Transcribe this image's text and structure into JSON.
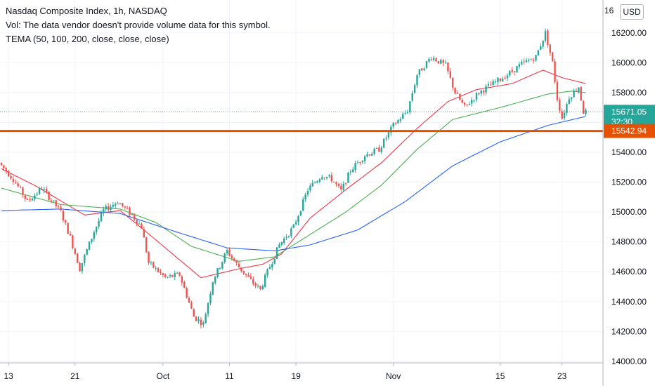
{
  "legend": {
    "title": "Nasdaq Composite Index, 1h, NASDAQ",
    "vol": "Vol: The data vendor doesn't provide volume data for this symbol.",
    "tema": "TEMA (50, 100, 200, close, close, close)"
  },
  "currency_button": "USD",
  "chart_data": {
    "type": "candlestick",
    "title": "Nasdaq Composite Index, 1h, NASDAQ",
    "y_ticks": [
      14000,
      14200,
      14400,
      14600,
      14800,
      15000,
      15200,
      15400,
      15600,
      15800,
      16000,
      16200
    ],
    "y_tick_labels": [
      "14000.00",
      "14200.00",
      "14400.00",
      "14600.00",
      "14800.00",
      "15000.00",
      "15200.00",
      "15400.00",
      "15600.00",
      "15800.00",
      "16000.00",
      "16200.00"
    ],
    "top_tick_partial": "16",
    "ylim": [
      13990,
      16420
    ],
    "x_tick_labels": [
      "13",
      "21",
      "Oct",
      "11",
      "19",
      "Nov",
      "15",
      "23"
    ],
    "grid": true,
    "price_labels": [
      {
        "label": "15671.05",
        "sublabel": "32:30",
        "color": "#26a69a"
      },
      {
        "label": "15542.94",
        "color": "#e65100"
      }
    ],
    "horizontal_line": {
      "value": 15542.94,
      "color": "#e65100"
    },
    "last_price": 15671.05,
    "colors": {
      "up": "#26a69a",
      "down": "#ef5350",
      "tema50": "#f23645",
      "tema100": "#4caf50",
      "tema200": "#2962ff"
    },
    "anchors": [
      [
        0,
        15330
      ],
      [
        6,
        15220
      ],
      [
        12,
        15070
      ],
      [
        18,
        15160
      ],
      [
        22,
        15080
      ],
      [
        26,
        15000
      ],
      [
        30,
        14830
      ],
      [
        34,
        14620
      ],
      [
        40,
        14870
      ],
      [
        44,
        15010
      ],
      [
        50,
        15070
      ],
      [
        56,
        14980
      ],
      [
        60,
        14900
      ],
      [
        63,
        14660
      ],
      [
        70,
        14560
      ],
      [
        76,
        14580
      ],
      [
        82,
        14300
      ],
      [
        86,
        14250
      ],
      [
        90,
        14540
      ],
      [
        96,
        14740
      ],
      [
        100,
        14650
      ],
      [
        106,
        14540
      ],
      [
        110,
        14480
      ],
      [
        113,
        14600
      ],
      [
        118,
        14780
      ],
      [
        124,
        14900
      ],
      [
        130,
        15150
      ],
      [
        136,
        15250
      ],
      [
        140,
        15220
      ],
      [
        144,
        15140
      ],
      [
        148,
        15280
      ],
      [
        154,
        15380
      ],
      [
        160,
        15420
      ],
      [
        166,
        15580
      ],
      [
        172,
        15680
      ],
      [
        176,
        15920
      ],
      [
        182,
        16040
      ],
      [
        188,
        15980
      ],
      [
        192,
        15800
      ],
      [
        196,
        15700
      ],
      [
        202,
        15800
      ],
      [
        208,
        15860
      ],
      [
        214,
        15920
      ],
      [
        220,
        15990
      ],
      [
        226,
        16040
      ],
      [
        230,
        16200
      ],
      [
        233,
        16000
      ],
      [
        235,
        15760
      ],
      [
        237,
        15630
      ],
      [
        240,
        15770
      ],
      [
        244,
        15840
      ],
      [
        246,
        15671
      ]
    ],
    "tema_series": [
      {
        "name": "TEMA 50",
        "points": [
          [
            0,
            15290
          ],
          [
            15,
            15170
          ],
          [
            35,
            14980
          ],
          [
            50,
            15010
          ],
          [
            60,
            14880
          ],
          [
            75,
            14680
          ],
          [
            84,
            14560
          ],
          [
            100,
            14620
          ],
          [
            110,
            14650
          ],
          [
            118,
            14720
          ],
          [
            130,
            14960
          ],
          [
            145,
            15150
          ],
          [
            160,
            15330
          ],
          [
            175,
            15560
          ],
          [
            188,
            15740
          ],
          [
            200,
            15820
          ],
          [
            215,
            15860
          ],
          [
            228,
            15950
          ],
          [
            236,
            15900
          ],
          [
            246,
            15860
          ]
        ]
      },
      {
        "name": "TEMA 100",
        "points": [
          [
            0,
            15160
          ],
          [
            25,
            15050
          ],
          [
            50,
            15020
          ],
          [
            65,
            14930
          ],
          [
            80,
            14770
          ],
          [
            100,
            14670
          ],
          [
            115,
            14700
          ],
          [
            130,
            14850
          ],
          [
            145,
            15000
          ],
          [
            160,
            15180
          ],
          [
            175,
            15420
          ],
          [
            190,
            15620
          ],
          [
            210,
            15700
          ],
          [
            230,
            15790
          ],
          [
            240,
            15810
          ],
          [
            246,
            15800
          ]
        ]
      },
      {
        "name": "TEMA 200",
        "points": [
          [
            0,
            15010
          ],
          [
            25,
            15020
          ],
          [
            50,
            14990
          ],
          [
            75,
            14860
          ],
          [
            95,
            14760
          ],
          [
            115,
            14740
          ],
          [
            130,
            14780
          ],
          [
            150,
            14880
          ],
          [
            170,
            15070
          ],
          [
            190,
            15310
          ],
          [
            210,
            15470
          ],
          [
            230,
            15580
          ],
          [
            246,
            15640
          ]
        ]
      }
    ]
  }
}
